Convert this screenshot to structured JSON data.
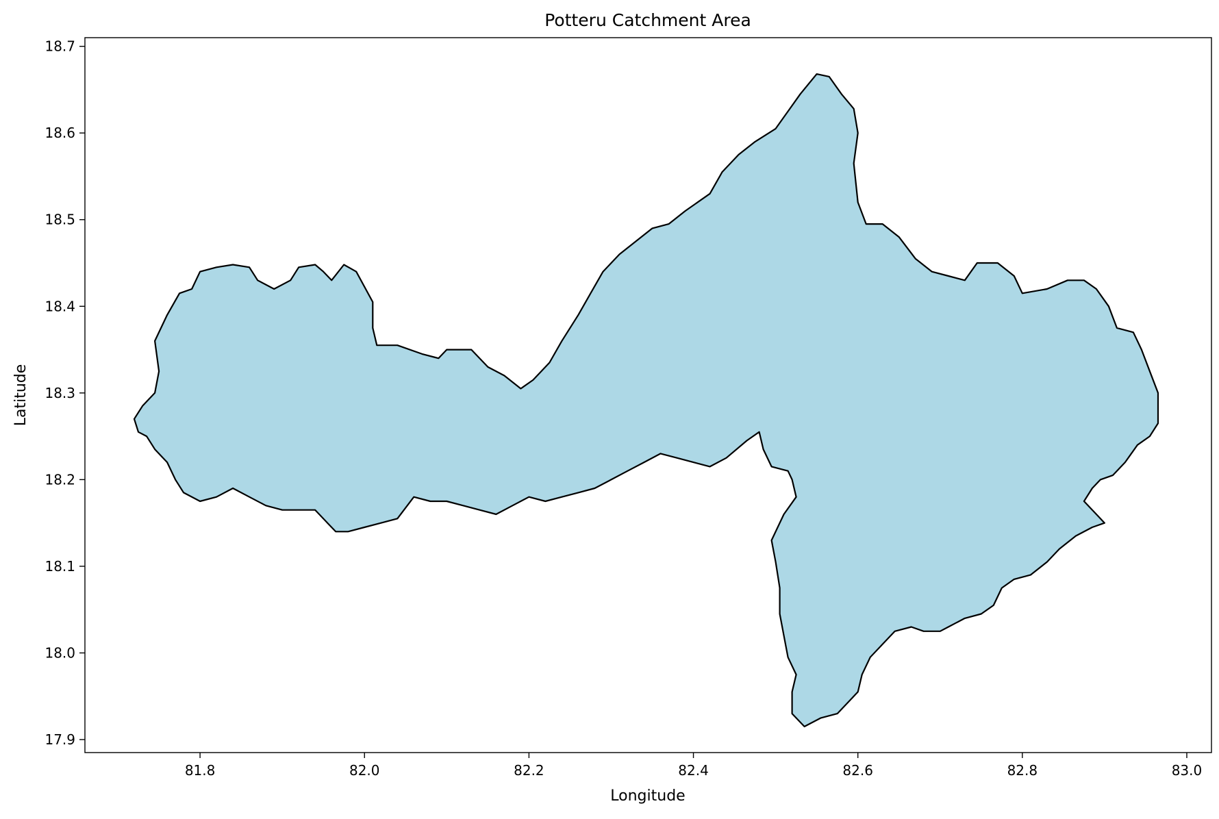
{
  "chart_data": {
    "type": "map",
    "title": "Potteru Catchment Area",
    "xlabel": "Longitude",
    "ylabel": "Latitude",
    "xlim": [
      81.66,
      83.03
    ],
    "ylim": [
      17.885,
      18.71
    ],
    "xticks": [
      {
        "value": 81.8,
        "label": "81.8"
      },
      {
        "value": 82.0,
        "label": "82.0"
      },
      {
        "value": 82.2,
        "label": "82.2"
      },
      {
        "value": 82.4,
        "label": "82.4"
      },
      {
        "value": 82.6,
        "label": "82.6"
      },
      {
        "value": 82.8,
        "label": "82.8"
      },
      {
        "value": 83.0,
        "label": "83.0"
      }
    ],
    "yticks": [
      {
        "value": 17.9,
        "label": "17.9"
      },
      {
        "value": 18.0,
        "label": "18.0"
      },
      {
        "value": 18.1,
        "label": "18.1"
      },
      {
        "value": 18.2,
        "label": "18.2"
      },
      {
        "value": 18.3,
        "label": "18.3"
      },
      {
        "value": 18.4,
        "label": "18.4"
      },
      {
        "value": 18.5,
        "label": "18.5"
      },
      {
        "value": 18.6,
        "label": "18.6"
      },
      {
        "value": 18.7,
        "label": "18.7"
      }
    ],
    "grid": false,
    "fill_color": "#add8e6",
    "edge_color": "#000000",
    "boundary": [
      [
        81.72,
        18.27
      ],
      [
        81.73,
        18.285
      ],
      [
        81.745,
        18.3
      ],
      [
        81.75,
        18.325
      ],
      [
        81.745,
        18.36
      ],
      [
        81.76,
        18.39
      ],
      [
        81.775,
        18.415
      ],
      [
        81.79,
        18.42
      ],
      [
        81.8,
        18.44
      ],
      [
        81.82,
        18.445
      ],
      [
        81.84,
        18.448
      ],
      [
        81.86,
        18.445
      ],
      [
        81.87,
        18.43
      ],
      [
        81.89,
        18.42
      ],
      [
        81.91,
        18.43
      ],
      [
        81.92,
        18.445
      ],
      [
        81.94,
        18.448
      ],
      [
        81.95,
        18.44
      ],
      [
        81.96,
        18.43
      ],
      [
        81.975,
        18.448
      ],
      [
        81.99,
        18.44
      ],
      [
        82.01,
        18.405
      ],
      [
        82.01,
        18.375
      ],
      [
        82.015,
        18.355
      ],
      [
        82.04,
        18.355
      ],
      [
        82.07,
        18.345
      ],
      [
        82.09,
        18.34
      ],
      [
        82.1,
        18.35
      ],
      [
        82.13,
        18.35
      ],
      [
        82.15,
        18.33
      ],
      [
        82.17,
        18.32
      ],
      [
        82.19,
        18.305
      ],
      [
        82.205,
        18.315
      ],
      [
        82.225,
        18.335
      ],
      [
        82.24,
        18.36
      ],
      [
        82.26,
        18.39
      ],
      [
        82.275,
        18.415
      ],
      [
        82.29,
        18.44
      ],
      [
        82.31,
        18.46
      ],
      [
        82.33,
        18.475
      ],
      [
        82.35,
        18.49
      ],
      [
        82.37,
        18.495
      ],
      [
        82.39,
        18.51
      ],
      [
        82.42,
        18.53
      ],
      [
        82.435,
        18.555
      ],
      [
        82.455,
        18.575
      ],
      [
        82.475,
        18.59
      ],
      [
        82.5,
        18.605
      ],
      [
        82.515,
        18.625
      ],
      [
        82.53,
        18.645
      ],
      [
        82.55,
        18.668
      ],
      [
        82.565,
        18.665
      ],
      [
        82.58,
        18.645
      ],
      [
        82.595,
        18.628
      ],
      [
        82.6,
        18.6
      ],
      [
        82.595,
        18.565
      ],
      [
        82.6,
        18.52
      ],
      [
        82.61,
        18.495
      ],
      [
        82.63,
        18.495
      ],
      [
        82.65,
        18.48
      ],
      [
        82.67,
        18.455
      ],
      [
        82.69,
        18.44
      ],
      [
        82.71,
        18.435
      ],
      [
        82.73,
        18.43
      ],
      [
        82.745,
        18.45
      ],
      [
        82.77,
        18.45
      ],
      [
        82.79,
        18.435
      ],
      [
        82.8,
        18.415
      ],
      [
        82.83,
        18.42
      ],
      [
        82.855,
        18.43
      ],
      [
        82.875,
        18.43
      ],
      [
        82.89,
        18.42
      ],
      [
        82.905,
        18.4
      ],
      [
        82.915,
        18.375
      ],
      [
        82.935,
        18.37
      ],
      [
        82.945,
        18.35
      ],
      [
        82.955,
        18.325
      ],
      [
        82.965,
        18.3
      ],
      [
        82.965,
        18.265
      ],
      [
        82.955,
        18.25
      ],
      [
        82.94,
        18.24
      ],
      [
        82.925,
        18.22
      ],
      [
        82.91,
        18.205
      ],
      [
        82.895,
        18.2
      ],
      [
        82.885,
        18.19
      ],
      [
        82.875,
        18.175
      ],
      [
        82.89,
        18.16
      ],
      [
        82.9,
        18.15
      ],
      [
        82.885,
        18.145
      ],
      [
        82.865,
        18.135
      ],
      [
        82.845,
        18.12
      ],
      [
        82.83,
        18.105
      ],
      [
        82.81,
        18.09
      ],
      [
        82.79,
        18.085
      ],
      [
        82.775,
        18.075
      ],
      [
        82.765,
        18.055
      ],
      [
        82.75,
        18.045
      ],
      [
        82.73,
        18.04
      ],
      [
        82.71,
        18.03
      ],
      [
        82.7,
        18.025
      ],
      [
        82.68,
        18.025
      ],
      [
        82.665,
        18.03
      ],
      [
        82.645,
        18.025
      ],
      [
        82.63,
        18.01
      ],
      [
        82.615,
        17.995
      ],
      [
        82.605,
        17.975
      ],
      [
        82.6,
        17.955
      ],
      [
        82.59,
        17.945
      ],
      [
        82.575,
        17.93
      ],
      [
        82.555,
        17.925
      ],
      [
        82.535,
        17.915
      ],
      [
        82.52,
        17.93
      ],
      [
        82.52,
        17.955
      ],
      [
        82.525,
        17.975
      ],
      [
        82.515,
        17.995
      ],
      [
        82.51,
        18.02
      ],
      [
        82.505,
        18.045
      ],
      [
        82.505,
        18.075
      ],
      [
        82.5,
        18.105
      ],
      [
        82.495,
        18.13
      ],
      [
        82.51,
        18.16
      ],
      [
        82.525,
        18.18
      ],
      [
        82.52,
        18.2
      ],
      [
        82.515,
        18.21
      ],
      [
        82.495,
        18.215
      ],
      [
        82.485,
        18.235
      ],
      [
        82.48,
        18.255
      ],
      [
        82.465,
        18.245
      ],
      [
        82.44,
        18.225
      ],
      [
        82.42,
        18.215
      ],
      [
        82.4,
        18.22
      ],
      [
        82.38,
        18.225
      ],
      [
        82.36,
        18.23
      ],
      [
        82.34,
        18.22
      ],
      [
        82.32,
        18.21
      ],
      [
        82.3,
        18.2
      ],
      [
        82.28,
        18.19
      ],
      [
        82.26,
        18.185
      ],
      [
        82.24,
        18.18
      ],
      [
        82.22,
        18.175
      ],
      [
        82.2,
        18.18
      ],
      [
        82.18,
        18.17
      ],
      [
        82.16,
        18.16
      ],
      [
        82.14,
        18.165
      ],
      [
        82.12,
        18.17
      ],
      [
        82.1,
        18.175
      ],
      [
        82.08,
        18.175
      ],
      [
        82.06,
        18.18
      ],
      [
        82.04,
        18.155
      ],
      [
        82.02,
        18.15
      ],
      [
        82.0,
        18.145
      ],
      [
        81.98,
        18.14
      ],
      [
        81.965,
        18.14
      ],
      [
        81.955,
        18.15
      ],
      [
        81.94,
        18.165
      ],
      [
        81.92,
        18.165
      ],
      [
        81.9,
        18.165
      ],
      [
        81.88,
        18.17
      ],
      [
        81.86,
        18.18
      ],
      [
        81.84,
        18.19
      ],
      [
        81.82,
        18.18
      ],
      [
        81.8,
        18.175
      ],
      [
        81.78,
        18.185
      ],
      [
        81.77,
        18.2
      ],
      [
        81.76,
        18.22
      ],
      [
        81.745,
        18.235
      ],
      [
        81.735,
        18.25
      ],
      [
        81.725,
        18.255
      ]
    ]
  }
}
